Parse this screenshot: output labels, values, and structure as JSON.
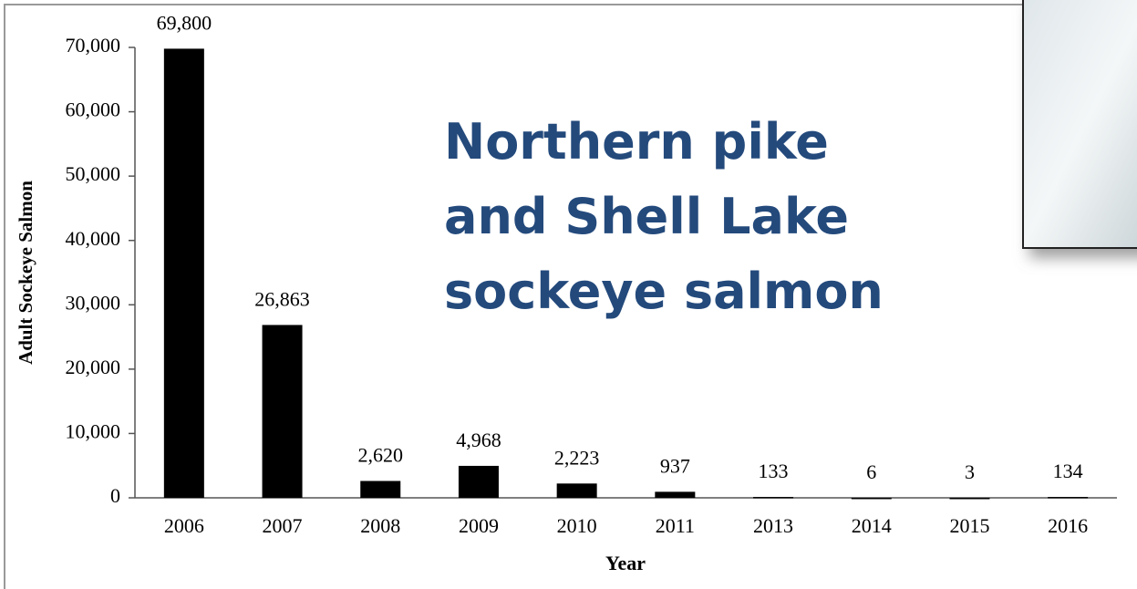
{
  "chart_data": {
    "type": "bar",
    "title": [
      "Northern pike",
      "and Shell Lake",
      "sockeye salmon"
    ],
    "x_label": "Year",
    "y_label": "Adult Sockeye Salmon",
    "categories": [
      "2006",
      "2007",
      "2008",
      "2009",
      "2010",
      "2011",
      "2013",
      "2014",
      "2015",
      "2016"
    ],
    "values": [
      69800,
      26863,
      2620,
      4968,
      2223,
      937,
      133,
      6,
      3,
      134
    ],
    "value_labels": [
      "69,800",
      "26,863",
      "2,620",
      "4,968",
      "2,223",
      "937",
      "133",
      "6",
      "3",
      "134"
    ],
    "color": "#000000",
    "ylim": [
      0,
      70000
    ],
    "yticks": [
      0,
      {
        "value": 10000,
        "label": "10,000"
      },
      {
        "value": 20000,
        "label": "20,000"
      },
      {
        "value": 30000,
        "label": "30,000"
      },
      {
        "value": 40000,
        "label": "40,000"
      },
      {
        "value": 50000,
        "label": "50,000"
      },
      {
        "value": 60000,
        "label": "60,000"
      },
      {
        "value": 70000,
        "label": "70,000"
      }
    ],
    "grid": false
  }
}
